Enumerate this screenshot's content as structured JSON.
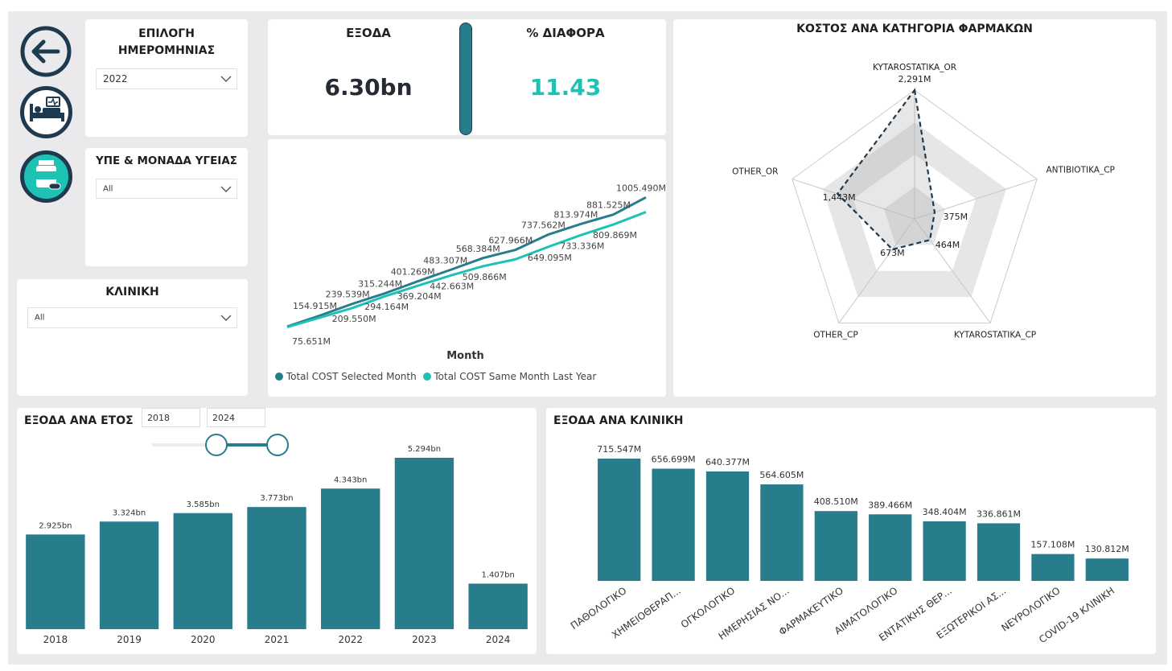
{
  "colors": {
    "teal": "#287d8c",
    "aqua": "#1ec2b4",
    "navy": "#1f3a4f",
    "bg": "#eaeaec"
  },
  "nav": {
    "back_icon": "arrow-left-icon",
    "hospital_icon": "hospital-bed-icon",
    "pharmacy_icon": "medicine-bottle-icon"
  },
  "filters": {
    "date": {
      "title": "ΕΠΙΛΟΓΗ\nΗΜΕΡΟΜΗΝΙΑΣ",
      "title_l1": "ΕΠΙΛΟΓΗ",
      "title_l2": "ΗΜΕΡΟΜΗΝΙΑΣ",
      "value": "2022"
    },
    "unit": {
      "title": "ΥΠΕ & ΜΟΝΑΔΑ ΥΓΕΙΑΣ",
      "value": "All"
    },
    "clinic": {
      "title": "ΚΛΙΝΙΚΗ",
      "value": "All"
    }
  },
  "kpi": {
    "expenses_label": "ΕΞΟΔΑ",
    "expenses_value": "6.30bn",
    "diff_label": "% ΔΙΑΦΟΡΑ",
    "diff_value": "11.43"
  },
  "line_chart": {
    "xlabel": "Month",
    "legend": [
      "Total COST Selected Month",
      "Total COST Same Month Last Year"
    ]
  },
  "radar": {
    "title": "ΚΟΣΤΟΣ ΑΝΑ ΚΑΤΗΓΟΡΙΑ ΦΑΡΜΑΚΩΝ"
  },
  "year_chart": {
    "title": "ΕΞΟΔΑ ΑΝΑ ΕΤΟΣ",
    "from": "2018",
    "to": "2024"
  },
  "clinic_chart": {
    "title": "ΕΞΟΔΑ ΑΝΑ ΚΛΙΝΙΚΗ"
  },
  "chart_data": [
    {
      "type": "line",
      "xlabel": "Month",
      "x": [
        1,
        2,
        3,
        4,
        5,
        6,
        7,
        8,
        9,
        10,
        11,
        12
      ],
      "series": [
        {
          "name": "Total COST Selected Month",
          "values": [
            75.651,
            154.915,
            239.539,
            315.244,
            401.269,
            483.307,
            568.384,
            627.966,
            737.562,
            813.974,
            881.525,
            1005.49
          ],
          "labels": [
            "75.651M",
            "154.915M",
            "239.539M",
            "315.244M",
            "401.269M",
            "483.307M",
            "568.384M",
            "627.966M",
            "737.562M",
            "813.974M",
            "881.525M",
            "1005.490M"
          ]
        },
        {
          "name": "Total COST Same Month Last Year",
          "values": [
            72,
            140,
            209.55,
            294.164,
            369.204,
            442.663,
            509.866,
            560,
            649.095,
            733.336,
            809.869,
            900
          ],
          "labels": [
            "",
            "",
            "209.550M",
            "294.164M",
            "369.204M",
            "442.663M",
            "509.866M",
            "",
            "649.095M",
            "733.336M",
            "809.869M",
            ""
          ]
        }
      ],
      "ylim": [
        0,
        1100
      ]
    },
    {
      "type": "radar",
      "title": "ΚΟΣΤΟΣ ΑΝΑ ΚΑΤΗΓΟΡΙΑ ΦΑΡΜΑΚΩΝ",
      "categories": [
        "KYTAROSTATIKA_OR",
        "ANTIBIOTIKA_CP",
        "KYTAROSTATIKA_CP",
        "OTHER_CP",
        "OTHER_OR"
      ],
      "values": [
        2291,
        375,
        464,
        673,
        1443
      ],
      "labels": [
        "2,291M",
        "375M",
        "464M",
        "673M",
        "1,443M"
      ],
      "rmax": 2291
    },
    {
      "type": "bar",
      "title": "ΕΞΟΔΑ ΑΝΑ ΕΤΟΣ",
      "categories": [
        "2018",
        "2019",
        "2020",
        "2021",
        "2022",
        "2023",
        "2024"
      ],
      "values": [
        2.925,
        3.324,
        3.585,
        3.773,
        4.343,
        5.294,
        1.407
      ],
      "labels": [
        "2.925bn",
        "3.324bn",
        "3.585bn",
        "3.773bn",
        "4.343bn",
        "5.294bn",
        "1.407bn"
      ],
      "ylim": [
        0,
        5.294
      ]
    },
    {
      "type": "bar",
      "title": "ΕΞΟΔΑ ΑΝΑ ΚΛΙΝΙΚΗ",
      "categories": [
        "ΠΑΘΟΛΟΓΙΚΟ",
        "ΧΗΜΕΙΟΘΕΡΑΠ...",
        "ΟΓΚΟΛΟΓΙΚΟ",
        "ΗΜΕΡΗΣΙΑΣ ΝΟ...",
        "ΦΑΡΜΑΚΕΥΤΙΚΟ",
        "ΑΙΜΑΤΟΛΟΓΙΚΟ",
        "ΕΝΤΑΤΙΚΗΣ ΘΕΡ...",
        "ΕΞΩΤΕΡΙΚΟΙ ΑΣ...",
        "ΝΕΥΡΟΛΟΓΙΚΟ",
        "COVID-19 ΚΛΙΝΙΚΗ"
      ],
      "values": [
        715.547,
        656.699,
        640.377,
        564.605,
        408.51,
        389.466,
        348.404,
        336.861,
        157.108,
        130.812
      ],
      "labels": [
        "715.547M",
        "656.699M",
        "640.377M",
        "564.605M",
        "408.510M",
        "389.466M",
        "348.404M",
        "336.861M",
        "157.108M",
        "130.812M"
      ],
      "ylim": [
        0,
        715.547
      ]
    }
  ]
}
